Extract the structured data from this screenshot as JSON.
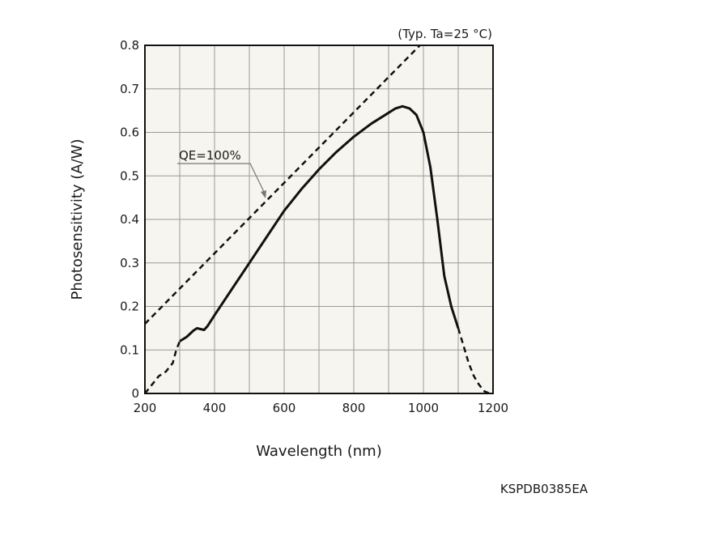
{
  "chart_data": {
    "type": "line",
    "condition": "(Typ. Ta=25 °C)",
    "xlabel": "Wavelength (nm)",
    "ylabel": "Photosensitivity (A/W)",
    "xlim": [
      200,
      1200
    ],
    "ylim": [
      0,
      0.8
    ],
    "x_ticks": [
      "200",
      "400",
      "600",
      "800",
      "1000",
      "1200"
    ],
    "y_ticks": [
      "0",
      "0.1",
      "0.2",
      "0.3",
      "0.4",
      "0.5",
      "0.6",
      "0.7",
      "0.8"
    ],
    "grid": true,
    "series": [
      {
        "style": "solid",
        "x": [
          300,
          320,
          340,
          350,
          360,
          370,
          380,
          400,
          450,
          500,
          550,
          600,
          650,
          700,
          750,
          800,
          850,
          900,
          920,
          940,
          960,
          980,
          1000,
          1020,
          1040,
          1060,
          1080,
          1100
        ],
        "y": [
          0.12,
          0.13,
          0.145,
          0.15,
          0.148,
          0.146,
          0.155,
          0.18,
          0.24,
          0.3,
          0.36,
          0.42,
          0.47,
          0.515,
          0.555,
          0.59,
          0.62,
          0.645,
          0.655,
          0.66,
          0.655,
          0.64,
          0.6,
          0.52,
          0.4,
          0.27,
          0.2,
          0.15
        ]
      },
      {
        "style": "dashed",
        "x": [
          200,
          220,
          240,
          260,
          280,
          290,
          300
        ],
        "y": [
          0.0,
          0.02,
          0.04,
          0.05,
          0.07,
          0.1,
          0.12
        ]
      },
      {
        "style": "dashed",
        "x": [
          1100,
          1115,
          1130,
          1145,
          1160,
          1175,
          1190
        ],
        "y": [
          0.15,
          0.11,
          0.07,
          0.04,
          0.02,
          0.005,
          0.0
        ]
      },
      {
        "name": "QE=100%",
        "style": "dashed",
        "x": [
          200,
          990
        ],
        "y": [
          0.16,
          0.8
        ]
      }
    ],
    "annotations": [
      {
        "text": "QE=100%"
      }
    ],
    "footer": "KSPDB0385EA"
  }
}
